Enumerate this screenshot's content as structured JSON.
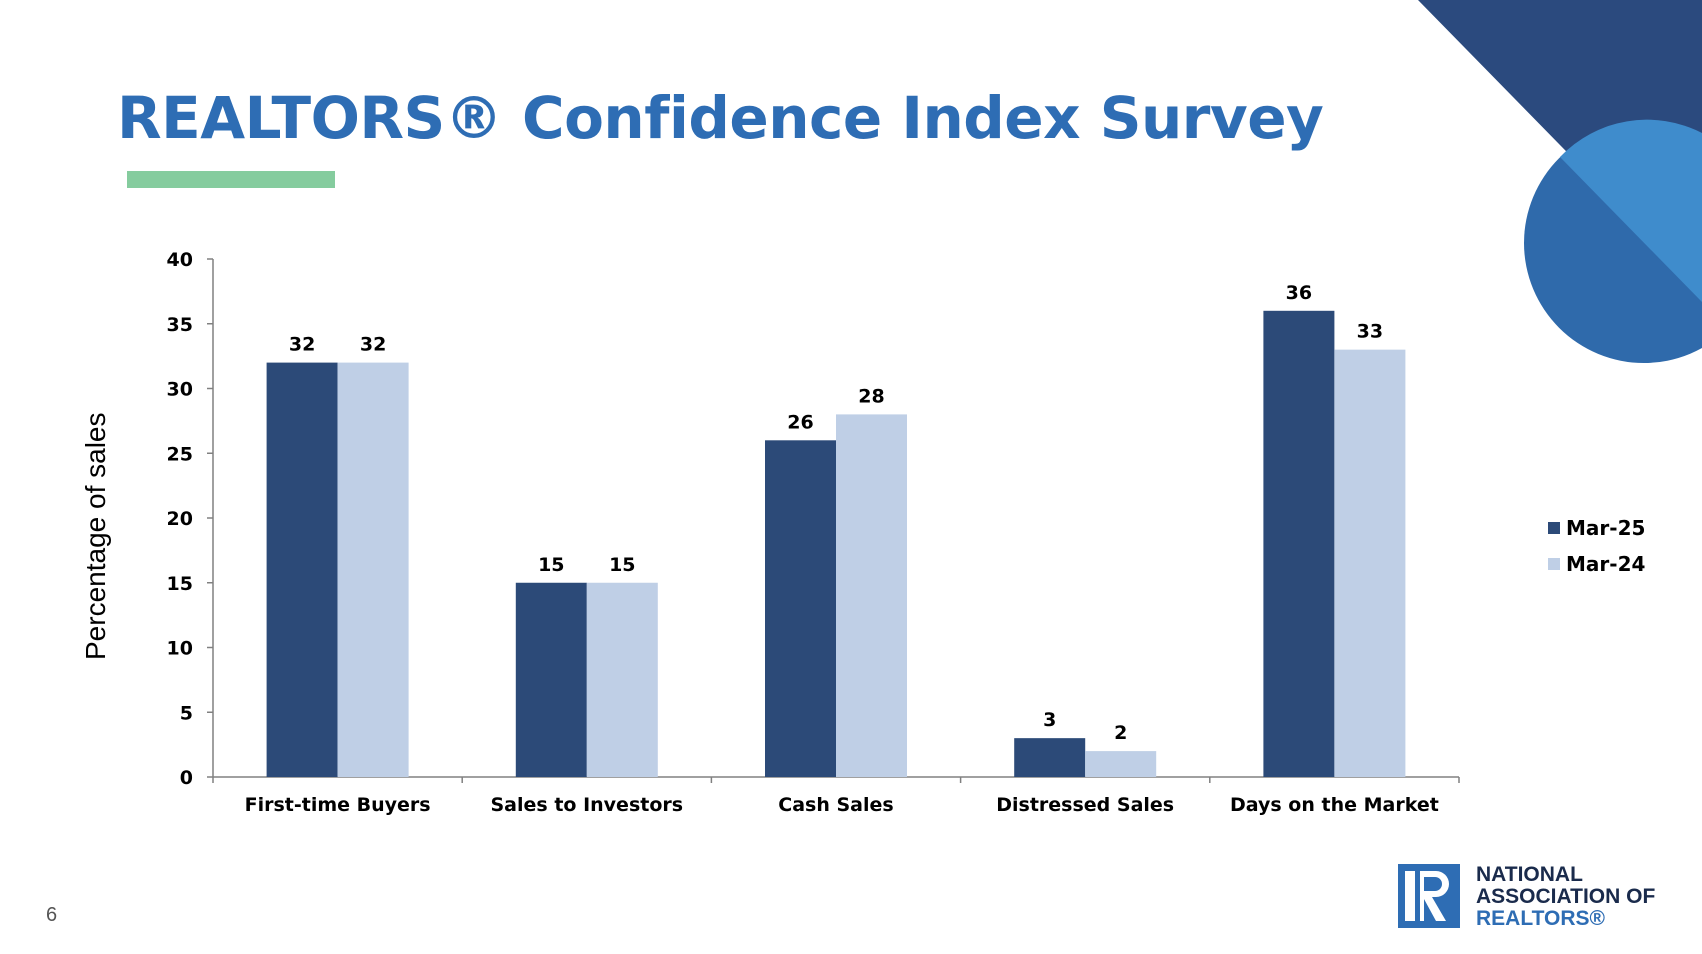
{
  "slide": {
    "title": "REALTORS® Confidence Index Survey",
    "page_number": "6"
  },
  "logo": {
    "line1": "NATIONAL",
    "line2": "ASSOCIATION OF",
    "line3": "REALTORS®"
  },
  "colors": {
    "title": "#2e6db4",
    "accent_bar": "#85cc9e",
    "series_mar25": "#2c4a78",
    "series_mar24": "#bfcfe6",
    "decor_triangle": "#2b4a7e",
    "decor_circle_dark": "#2f6aab",
    "decor_circle_light": "#3f8ccc"
  },
  "chart_data": {
    "type": "bar",
    "title": "",
    "xlabel": "",
    "ylabel": "Percentage of sales",
    "ylim": [
      0,
      40
    ],
    "yticks": [
      0,
      5,
      10,
      15,
      20,
      25,
      30,
      35,
      40
    ],
    "categories": [
      "First-time Buyers",
      "Sales to Investors",
      "Cash Sales",
      "Distressed Sales",
      "Days on the Market"
    ],
    "series": [
      {
        "name": "Mar-25",
        "values": [
          32,
          15,
          26,
          3,
          36
        ]
      },
      {
        "name": "Mar-24",
        "values": [
          32,
          15,
          28,
          2,
          33
        ]
      }
    ],
    "data_labels": true,
    "grid": false,
    "legend_position": "right"
  }
}
